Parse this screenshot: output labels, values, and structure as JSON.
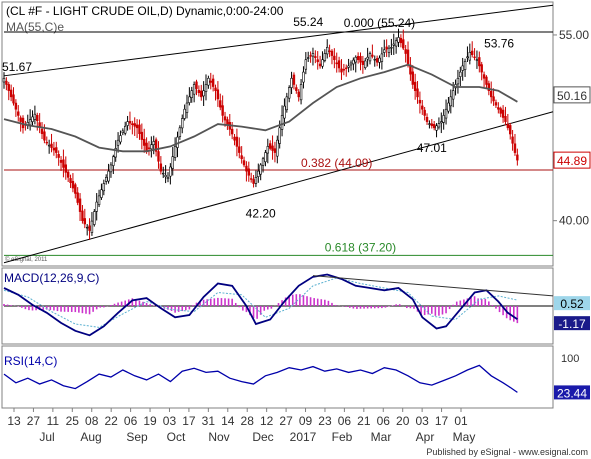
{
  "chart_data": {
    "type": "candlestick",
    "title": "(CL #F - LIGHT CRUDE OIL,D) Dynamic,0:00-24:00",
    "ma_label": "MA(55,C)e",
    "macd_label": "MACD(12,26,9,C)",
    "rsi_label": "RSI(14,C)",
    "watermark": "© eSignal, 2011",
    "footer": "Published by eSignal  -  www.esignal.com",
    "price_axis": {
      "ylim": [
        36.5,
        57.5
      ],
      "ticks": [
        "55.00",
        "50.16",
        "44.89",
        "40.00"
      ],
      "tick_values": [
        55.0,
        50.16,
        44.89,
        40.0
      ]
    },
    "macd_axis": {
      "ticks": [
        "0",
        "0.52",
        "-1.17"
      ],
      "tick_values": [
        0,
        0.52,
        -1.17
      ],
      "ylim": [
        -3.2,
        3.2
      ]
    },
    "rsi_axis": {
      "ticks": [
        "100",
        "23.44"
      ],
      "tick_values": [
        100,
        23.44
      ],
      "ylim": [
        0,
        100
      ]
    },
    "x_day_labels": [
      "13",
      "27",
      "11",
      "25",
      "08",
      "22",
      "06",
      "19",
      "03",
      "17",
      "31",
      "14",
      "28",
      "12",
      "27",
      "09",
      "23",
      "06",
      "21",
      "06",
      "20",
      "03",
      "17",
      "01"
    ],
    "x_month_labels": [
      "Jul",
      "Aug",
      "Sep",
      "Oct",
      "Nov",
      "Dec",
      "2017",
      "Feb",
      "Mar",
      "Apr",
      "May"
    ],
    "annotations": [
      {
        "text": "51.67",
        "price": 51.67
      },
      {
        "text": "55.24",
        "price": 55.24
      },
      {
        "text": "0.000 (55.24)",
        "price": 55.24
      },
      {
        "text": "53.76",
        "price": 53.76
      },
      {
        "text": "47.01",
        "price": 47.01
      },
      {
        "text": "0.382 (44.09)",
        "price": 44.09
      },
      {
        "text": "42.20",
        "price": 42.2
      },
      {
        "text": "0.618 (37.20)",
        "price": 37.2
      }
    ],
    "fib_levels": [
      {
        "level": "0.000",
        "price": 55.24
      },
      {
        "level": "0.382",
        "price": 44.09
      },
      {
        "level": "0.618",
        "price": 37.2
      }
    ],
    "horizontal_line": {
      "price": 44.09,
      "color": "#aa1111"
    },
    "colors": {
      "up": "#000000",
      "down": "#cc0000",
      "ma": "#555555",
      "macd": "#000080",
      "signal": "#5ab0d0",
      "hist": "#cc33cc",
      "rsi": "#0000aa",
      "fib_top": "#000000",
      "fib_mid": "#aa1111",
      "fib_low": "#2a8a2a",
      "last_price": "#cc0000"
    },
    "price_series": [
      {
        "t": 0,
        "p": 51.5
      },
      {
        "t": 4,
        "p": 49.5
      },
      {
        "t": 8,
        "p": 47.5
      },
      {
        "t": 13,
        "p": 48.6
      },
      {
        "t": 17,
        "p": 46.5
      },
      {
        "t": 22,
        "p": 45.5
      },
      {
        "t": 27,
        "p": 43.5
      },
      {
        "t": 30,
        "p": 42.2
      },
      {
        "t": 33,
        "p": 40.0
      },
      {
        "t": 36,
        "p": 39.2
      },
      {
        "t": 39,
        "p": 41.5
      },
      {
        "t": 42,
        "p": 43.0
      },
      {
        "t": 45,
        "p": 44.5
      },
      {
        "t": 48,
        "p": 46.5
      },
      {
        "t": 52,
        "p": 48.0
      },
      {
        "t": 56,
        "p": 47.5
      },
      {
        "t": 60,
        "p": 45.6
      },
      {
        "t": 63,
        "p": 46.4
      },
      {
        "t": 66,
        "p": 44.0
      },
      {
        "t": 69,
        "p": 43.5
      },
      {
        "t": 72,
        "p": 46.0
      },
      {
        "t": 76,
        "p": 49.0
      },
      {
        "t": 80,
        "p": 51.0
      },
      {
        "t": 83,
        "p": 50.0
      },
      {
        "t": 86,
        "p": 51.5
      },
      {
        "t": 89,
        "p": 50.5
      },
      {
        "t": 92,
        "p": 48.5
      },
      {
        "t": 96,
        "p": 47.0
      },
      {
        "t": 99,
        "p": 45.5
      },
      {
        "t": 102,
        "p": 44.0
      },
      {
        "t": 105,
        "p": 43.0
      },
      {
        "t": 108,
        "p": 44.5
      },
      {
        "t": 111,
        "p": 46.0
      },
      {
        "t": 114,
        "p": 45.5
      },
      {
        "t": 117,
        "p": 48.5
      },
      {
        "t": 121,
        "p": 51.5
      },
      {
        "t": 124,
        "p": 50.0
      },
      {
        "t": 127,
        "p": 53.0
      },
      {
        "t": 130,
        "p": 53.5
      },
      {
        "t": 133,
        "p": 52.5
      },
      {
        "t": 136,
        "p": 54.0
      },
      {
        "t": 139,
        "p": 53.0
      },
      {
        "t": 142,
        "p": 52.0
      },
      {
        "t": 145,
        "p": 52.5
      },
      {
        "t": 148,
        "p": 53.2
      },
      {
        "t": 151,
        "p": 52.6
      },
      {
        "t": 154,
        "p": 53.5
      },
      {
        "t": 157,
        "p": 52.8
      },
      {
        "t": 160,
        "p": 53.8
      },
      {
        "t": 163,
        "p": 54.0
      },
      {
        "t": 166,
        "p": 54.8
      },
      {
        "t": 169,
        "p": 53.5
      },
      {
        "t": 172,
        "p": 51.0
      },
      {
        "t": 175,
        "p": 49.5
      },
      {
        "t": 178,
        "p": 48.0
      },
      {
        "t": 181,
        "p": 47.5
      },
      {
        "t": 184,
        "p": 48.0
      },
      {
        "t": 187,
        "p": 49.5
      },
      {
        "t": 190,
        "p": 51.0
      },
      {
        "t": 193,
        "p": 52.5
      },
      {
        "t": 196,
        "p": 53.6
      },
      {
        "t": 199,
        "p": 53.0
      },
      {
        "t": 202,
        "p": 51.5
      },
      {
        "t": 205,
        "p": 50.0
      },
      {
        "t": 208,
        "p": 49.0
      },
      {
        "t": 211,
        "p": 48.0
      },
      {
        "t": 213,
        "p": 47.0
      },
      {
        "t": 215,
        "p": 45.5
      },
      {
        "t": 216,
        "p": 44.89
      }
    ],
    "ma_series": [
      {
        "t": 0,
        "p": 48.2
      },
      {
        "t": 10,
        "p": 47.7
      },
      {
        "t": 20,
        "p": 47.4
      },
      {
        "t": 30,
        "p": 46.8
      },
      {
        "t": 40,
        "p": 45.9
      },
      {
        "t": 50,
        "p": 45.6
      },
      {
        "t": 60,
        "p": 45.6
      },
      {
        "t": 70,
        "p": 46.0
      },
      {
        "t": 80,
        "p": 46.8
      },
      {
        "t": 90,
        "p": 47.8
      },
      {
        "t": 100,
        "p": 47.6
      },
      {
        "t": 110,
        "p": 47.3
      },
      {
        "t": 120,
        "p": 48.0
      },
      {
        "t": 130,
        "p": 49.5
      },
      {
        "t": 140,
        "p": 50.8
      },
      {
        "t": 150,
        "p": 51.5
      },
      {
        "t": 160,
        "p": 52.0
      },
      {
        "t": 170,
        "p": 52.6
      },
      {
        "t": 180,
        "p": 51.8
      },
      {
        "t": 190,
        "p": 50.8
      },
      {
        "t": 200,
        "p": 50.8
      },
      {
        "t": 208,
        "p": 50.5
      },
      {
        "t": 216,
        "p": 49.6
      }
    ],
    "trendlines": [
      {
        "name": "upper-channel",
        "from": {
          "t": 0,
          "p": 51.7
        },
        "to": {
          "t": 231,
          "p": 57.4
        },
        "color": "#000000"
      },
      {
        "name": "lower-channel",
        "from": {
          "t": 0,
          "p": 36.6
        },
        "to": {
          "t": 231,
          "p": 48.8
        },
        "color": "#000000"
      }
    ],
    "macd_series": [
      {
        "t": 0,
        "v": 1.6
      },
      {
        "t": 6,
        "v": 1.0
      },
      {
        "t": 12,
        "v": 0.1
      },
      {
        "t": 18,
        "v": -0.6
      },
      {
        "t": 24,
        "v": -1.5
      },
      {
        "t": 30,
        "v": -2.2
      },
      {
        "t": 36,
        "v": -2.6
      },
      {
        "t": 42,
        "v": -1.8
      },
      {
        "t": 48,
        "v": -0.6
      },
      {
        "t": 54,
        "v": 0.5
      },
      {
        "t": 60,
        "v": 0.7
      },
      {
        "t": 66,
        "v": -0.2
      },
      {
        "t": 72,
        "v": -1.0
      },
      {
        "t": 78,
        "v": -0.8
      },
      {
        "t": 84,
        "v": 0.8
      },
      {
        "t": 90,
        "v": 2.0
      },
      {
        "t": 96,
        "v": 1.8
      },
      {
        "t": 102,
        "v": 0.0
      },
      {
        "t": 106,
        "v": -1.6
      },
      {
        "t": 112,
        "v": -1.2
      },
      {
        "t": 118,
        "v": 0.4
      },
      {
        "t": 124,
        "v": 1.8
      },
      {
        "t": 130,
        "v": 2.6
      },
      {
        "t": 136,
        "v": 2.8
      },
      {
        "t": 142,
        "v": 2.4
      },
      {
        "t": 148,
        "v": 1.8
      },
      {
        "t": 154,
        "v": 1.6
      },
      {
        "t": 160,
        "v": 1.4
      },
      {
        "t": 166,
        "v": 1.6
      },
      {
        "t": 172,
        "v": 0.6
      },
      {
        "t": 176,
        "v": -1.0
      },
      {
        "t": 182,
        "v": -2.0
      },
      {
        "t": 186,
        "v": -1.8
      },
      {
        "t": 192,
        "v": -0.3
      },
      {
        "t": 198,
        "v": 1.2
      },
      {
        "t": 203,
        "v": 1.4
      },
      {
        "t": 208,
        "v": 0.4
      },
      {
        "t": 212,
        "v": -0.6
      },
      {
        "t": 216,
        "v": -1.17
      }
    ],
    "signal_series": [
      {
        "t": 0,
        "v": 1.4
      },
      {
        "t": 10,
        "v": 0.8
      },
      {
        "t": 20,
        "v": -0.5
      },
      {
        "t": 30,
        "v": -1.6
      },
      {
        "t": 40,
        "v": -1.9
      },
      {
        "t": 50,
        "v": -0.7
      },
      {
        "t": 60,
        "v": 0.4
      },
      {
        "t": 70,
        "v": -0.3
      },
      {
        "t": 80,
        "v": -0.5
      },
      {
        "t": 90,
        "v": 1.2
      },
      {
        "t": 100,
        "v": 1.0
      },
      {
        "t": 110,
        "v": -1.0
      },
      {
        "t": 120,
        "v": -0.2
      },
      {
        "t": 130,
        "v": 1.8
      },
      {
        "t": 140,
        "v": 2.5
      },
      {
        "t": 150,
        "v": 2.0
      },
      {
        "t": 160,
        "v": 1.6
      },
      {
        "t": 170,
        "v": 1.2
      },
      {
        "t": 180,
        "v": -0.9
      },
      {
        "t": 190,
        "v": -1.2
      },
      {
        "t": 200,
        "v": 0.6
      },
      {
        "t": 208,
        "v": 0.9
      },
      {
        "t": 216,
        "v": 0.52
      }
    ],
    "macd_trendline": {
      "from": {
        "t": 130,
        "v": 2.7
      },
      "to": {
        "t": 231,
        "v": 0.9
      }
    },
    "rsi_series": [
      {
        "t": 0,
        "v": 55
      },
      {
        "t": 5,
        "v": 40
      },
      {
        "t": 10,
        "v": 48
      },
      {
        "t": 15,
        "v": 38
      },
      {
        "t": 20,
        "v": 45
      },
      {
        "t": 25,
        "v": 35
      },
      {
        "t": 30,
        "v": 30
      },
      {
        "t": 35,
        "v": 42
      },
      {
        "t": 40,
        "v": 55
      },
      {
        "t": 45,
        "v": 50
      },
      {
        "t": 50,
        "v": 62
      },
      {
        "t": 55,
        "v": 52
      },
      {
        "t": 60,
        "v": 45
      },
      {
        "t": 65,
        "v": 55
      },
      {
        "t": 70,
        "v": 42
      },
      {
        "t": 75,
        "v": 60
      },
      {
        "t": 80,
        "v": 65
      },
      {
        "t": 85,
        "v": 58
      },
      {
        "t": 90,
        "v": 60
      },
      {
        "t": 95,
        "v": 48
      },
      {
        "t": 100,
        "v": 42
      },
      {
        "t": 105,
        "v": 38
      },
      {
        "t": 110,
        "v": 52
      },
      {
        "t": 115,
        "v": 58
      },
      {
        "t": 120,
        "v": 66
      },
      {
        "t": 125,
        "v": 62
      },
      {
        "t": 130,
        "v": 68
      },
      {
        "t": 135,
        "v": 60
      },
      {
        "t": 140,
        "v": 64
      },
      {
        "t": 145,
        "v": 58
      },
      {
        "t": 150,
        "v": 62
      },
      {
        "t": 155,
        "v": 56
      },
      {
        "t": 160,
        "v": 66
      },
      {
        "t": 165,
        "v": 62
      },
      {
        "t": 170,
        "v": 52
      },
      {
        "t": 175,
        "v": 40
      },
      {
        "t": 180,
        "v": 36
      },
      {
        "t": 185,
        "v": 44
      },
      {
        "t": 190,
        "v": 52
      },
      {
        "t": 195,
        "v": 62
      },
      {
        "t": 200,
        "v": 70
      },
      {
        "t": 205,
        "v": 52
      },
      {
        "t": 210,
        "v": 40
      },
      {
        "t": 213,
        "v": 32
      },
      {
        "t": 216,
        "v": 23.44
      }
    ]
  }
}
